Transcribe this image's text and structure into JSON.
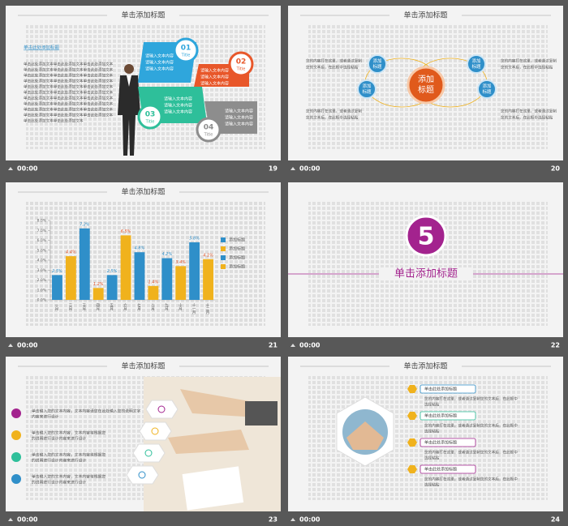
{
  "slides": [
    {
      "title": "单击添加标题",
      "time": "00:00",
      "number": "19",
      "heading": "单击此处添加标题",
      "body": [
        "单击此处添加文本单击此处添加文本单击此处添加文本",
        "单击此处添加文本单击此处添加文本单击此处添加文本",
        "单击此处添加文本单击此处添加文本单击此处添加文本",
        "单击此处添加文本单击此处添加文本单击此处添加文本",
        "单击此处添加文本单击此处添加文本单击此处添加文本",
        "单击此处添加文本单击此处添加文本单击此处添加文本",
        "单击此处添加文本单击此处添加文本单击此处添加文本",
        "单击此处添加文本单击此处添加文本单击此处添加文本",
        "单击此处添加文本单击此处添加文本单击此处添加文本",
        "单击此处添加文本单击此处添加文本单击此处添加文本",
        "单击此处添加文本单击此处添加文本"
      ],
      "items": [
        {
          "num": "01",
          "label": "Title",
          "lines": [
            "请输入文本内容",
            "请输入文本内容",
            "请输入文本内容"
          ]
        },
        {
          "num": "02",
          "label": "Title",
          "lines": [
            "请输入文本内容",
            "请输入文本内容",
            "请输入文本内容"
          ]
        },
        {
          "num": "03",
          "label": "Title",
          "lines": [
            "请输入文本内容",
            "请输入文本内容",
            "请输入文本内容"
          ]
        },
        {
          "num": "04",
          "label": "Title",
          "lines": [
            "请输入文本内容",
            "请输入文本内容",
            "请输入文本内容"
          ]
        }
      ]
    },
    {
      "title": "单击添加标题",
      "time": "00:00",
      "number": "20",
      "center": [
        "添加",
        "标题"
      ],
      "bubbles": [
        [
          "添加",
          "标题"
        ],
        [
          "添加",
          "标题"
        ],
        [
          "添加",
          "标题"
        ],
        [
          "添加",
          "标题"
        ]
      ],
      "texts": [
        [
          "您的内容打在这里，或者通过复制",
          "您的文本后，在此框中选择粘贴"
        ],
        [
          "您的内容打在这里，或者通过复制",
          "您的文本后，在此框中选择粘贴"
        ],
        [
          "您的内容打在这里，或者通过复制",
          "您的文本后，在此框中选择粘贴"
        ],
        [
          "您的内容打在这里，或者通过复制",
          "您的文本后，在此框中选择粘贴"
        ]
      ]
    },
    {
      "title": "单击添加标题",
      "time": "00:00",
      "number": "21"
    },
    {
      "time": "00:00",
      "number": "22",
      "big": "5",
      "title": "单击添加标题"
    },
    {
      "title": "单击添加标题",
      "time": "00:00",
      "number": "23",
      "items": [
        [
          "单击输入您的文本内容，文本内容请您在此处输入您的说明文字",
          "内容来进行设计"
        ],
        [
          "单击输入您的文本内容，文本内容将根据您",
          "的说明进行设计内容来进行设计"
        ],
        [
          "单击输入您的文本内容，文本内容将根据您",
          "的说明进行设计内容来进行设计"
        ],
        [
          "单击输入您的文本内容，文本内容将根据您",
          "的说明进行设计内容来进行设计"
        ]
      ]
    },
    {
      "title": "单击添加标题",
      "time": "00:00",
      "number": "24",
      "items": [
        {
          "heading": "单击此处添加标题",
          "lines": [
            "您的内容打在这里，或者通过复制您的文本后，在此框中",
            "选择粘贴"
          ]
        },
        {
          "heading": "单击此处添加标题",
          "lines": [
            "您的内容打在这里，或者通过复制您的文本后，在此框中",
            "选择粘贴"
          ]
        },
        {
          "heading": "单击此处添加标题",
          "lines": [
            "您的内容打在这里，或者通过复制您的文本后，在此框中",
            "选择粘贴"
          ]
        },
        {
          "heading": "单击此处添加标题",
          "lines": [
            "您的内容打在这里，或者通过复制您的文本后，在此框中",
            "选择粘贴"
          ]
        }
      ]
    }
  ],
  "chart_data": {
    "type": "bar",
    "categories": [
      "一月",
      "二月",
      "三月",
      "四月",
      "五月",
      "六月",
      "七月",
      "八月",
      "九月",
      "十月",
      "十一月",
      "十二月"
    ],
    "values": [
      2.5,
      4.4,
      7.2,
      1.2,
      2.5,
      6.5,
      4.8,
      1.4,
      4.2,
      3.4,
      5.8,
      4.1
    ],
    "value_labels": [
      "2.5%",
      "4.4%",
      "7.2%",
      "1.2%",
      "2.5%",
      "6.5%",
      "4.8%",
      "1.4%",
      "4.2%",
      "3.4%",
      "5.8%",
      "4.1%"
    ],
    "colors": [
      "#2f8fc9",
      "#f0b21d",
      "#2f8fc9",
      "#f0b21d",
      "#2f8fc9",
      "#f0b21d",
      "#2f8fc9",
      "#f0b21d",
      "#2f8fc9",
      "#f0b21d",
      "#2f8fc9",
      "#f0b21d"
    ],
    "ylim": [
      0,
      8
    ],
    "yticks": [
      {
        "value": 0,
        "label": "0.0%"
      },
      {
        "value": 1,
        "label": "1.0%"
      },
      {
        "value": 2,
        "label": "2.0%"
      },
      {
        "value": 3,
        "label": "3.0%"
      },
      {
        "value": 4,
        "label": "4.0%"
      },
      {
        "value": 5,
        "label": "5.0%"
      },
      {
        "value": 6,
        "label": "6.0%"
      },
      {
        "value": 7,
        "label": "7.0%"
      },
      {
        "value": 8,
        "label": "8.0%"
      }
    ],
    "legend": [
      {
        "name": "添加标题",
        "color": "#2f8fc9"
      },
      {
        "name": "添加标题",
        "color": "#f0b21d"
      },
      {
        "name": "添加标题",
        "color": "#2f8fc9"
      },
      {
        "name": "添加标题",
        "color": "#f0b21d"
      }
    ]
  }
}
